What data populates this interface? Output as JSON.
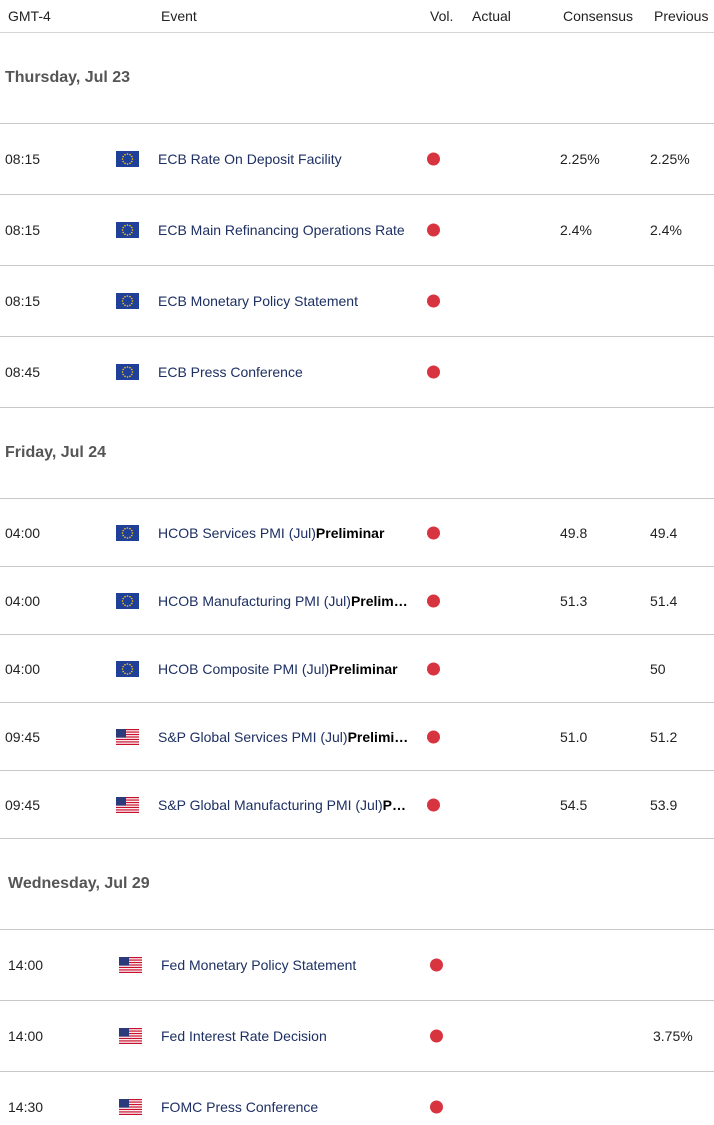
{
  "header": {
    "timezone": "GMT-4",
    "event": "Event",
    "vol": "Vol.",
    "actual": "Actual",
    "consensus": "Consensus",
    "previous": "Previous"
  },
  "days": [
    {
      "date": "Thursday, Jul 23",
      "rows": [
        {
          "time": "08:15",
          "flag": "EU",
          "event": "ECB Rate On Deposit Facility",
          "consensus": "2.25%",
          "previous": "2.25%"
        },
        {
          "time": "08:15",
          "flag": "EU",
          "event": "ECB Main Refinancing Operations Rate",
          "consensus": "2.4%",
          "previous": "2.4%"
        },
        {
          "time": "08:15",
          "flag": "EU",
          "event": "ECB Monetary Policy Statement"
        },
        {
          "time": "08:45",
          "flag": "EU",
          "event": "ECB Press Conference"
        }
      ]
    },
    {
      "date": "Friday, Jul 24",
      "rows": [
        {
          "time": "04:00",
          "flag": "EU",
          "event": "HCOB Services PMI (Jul)",
          "event_bold": "Preliminar",
          "consensus": "49.8",
          "previous": "49.4"
        },
        {
          "time": "04:00",
          "flag": "EU",
          "event": "HCOB Manufacturing PMI (Jul)",
          "event_bold": "Prelim…",
          "consensus": "51.3",
          "previous": "51.4"
        },
        {
          "time": "04:00",
          "flag": "EU",
          "event": "HCOB Composite PMI (Jul)",
          "event_bold": "Preliminar",
          "previous": "50"
        },
        {
          "time": "09:45",
          "flag": "US",
          "event": "S&P Global Services PMI (Jul)",
          "event_bold": "Prelimi…",
          "consensus": "51.0",
          "previous": "51.2"
        },
        {
          "time": "09:45",
          "flag": "US",
          "event": "S&P Global Manufacturing PMI (Jul)",
          "event_bold": "P…",
          "consensus": "54.5",
          "previous": "53.9"
        }
      ]
    },
    {
      "date": "Wednesday, Jul 29",
      "rows": [
        {
          "time": "14:00",
          "flag": "US",
          "event": "Fed Monetary Policy Statement"
        },
        {
          "time": "14:00",
          "flag": "US",
          "event": "Fed Interest Rate Decision",
          "previous": "3.75%"
        },
        {
          "time": "14:30",
          "flag": "US",
          "event": "FOMC Press Conference"
        }
      ]
    }
  ]
}
